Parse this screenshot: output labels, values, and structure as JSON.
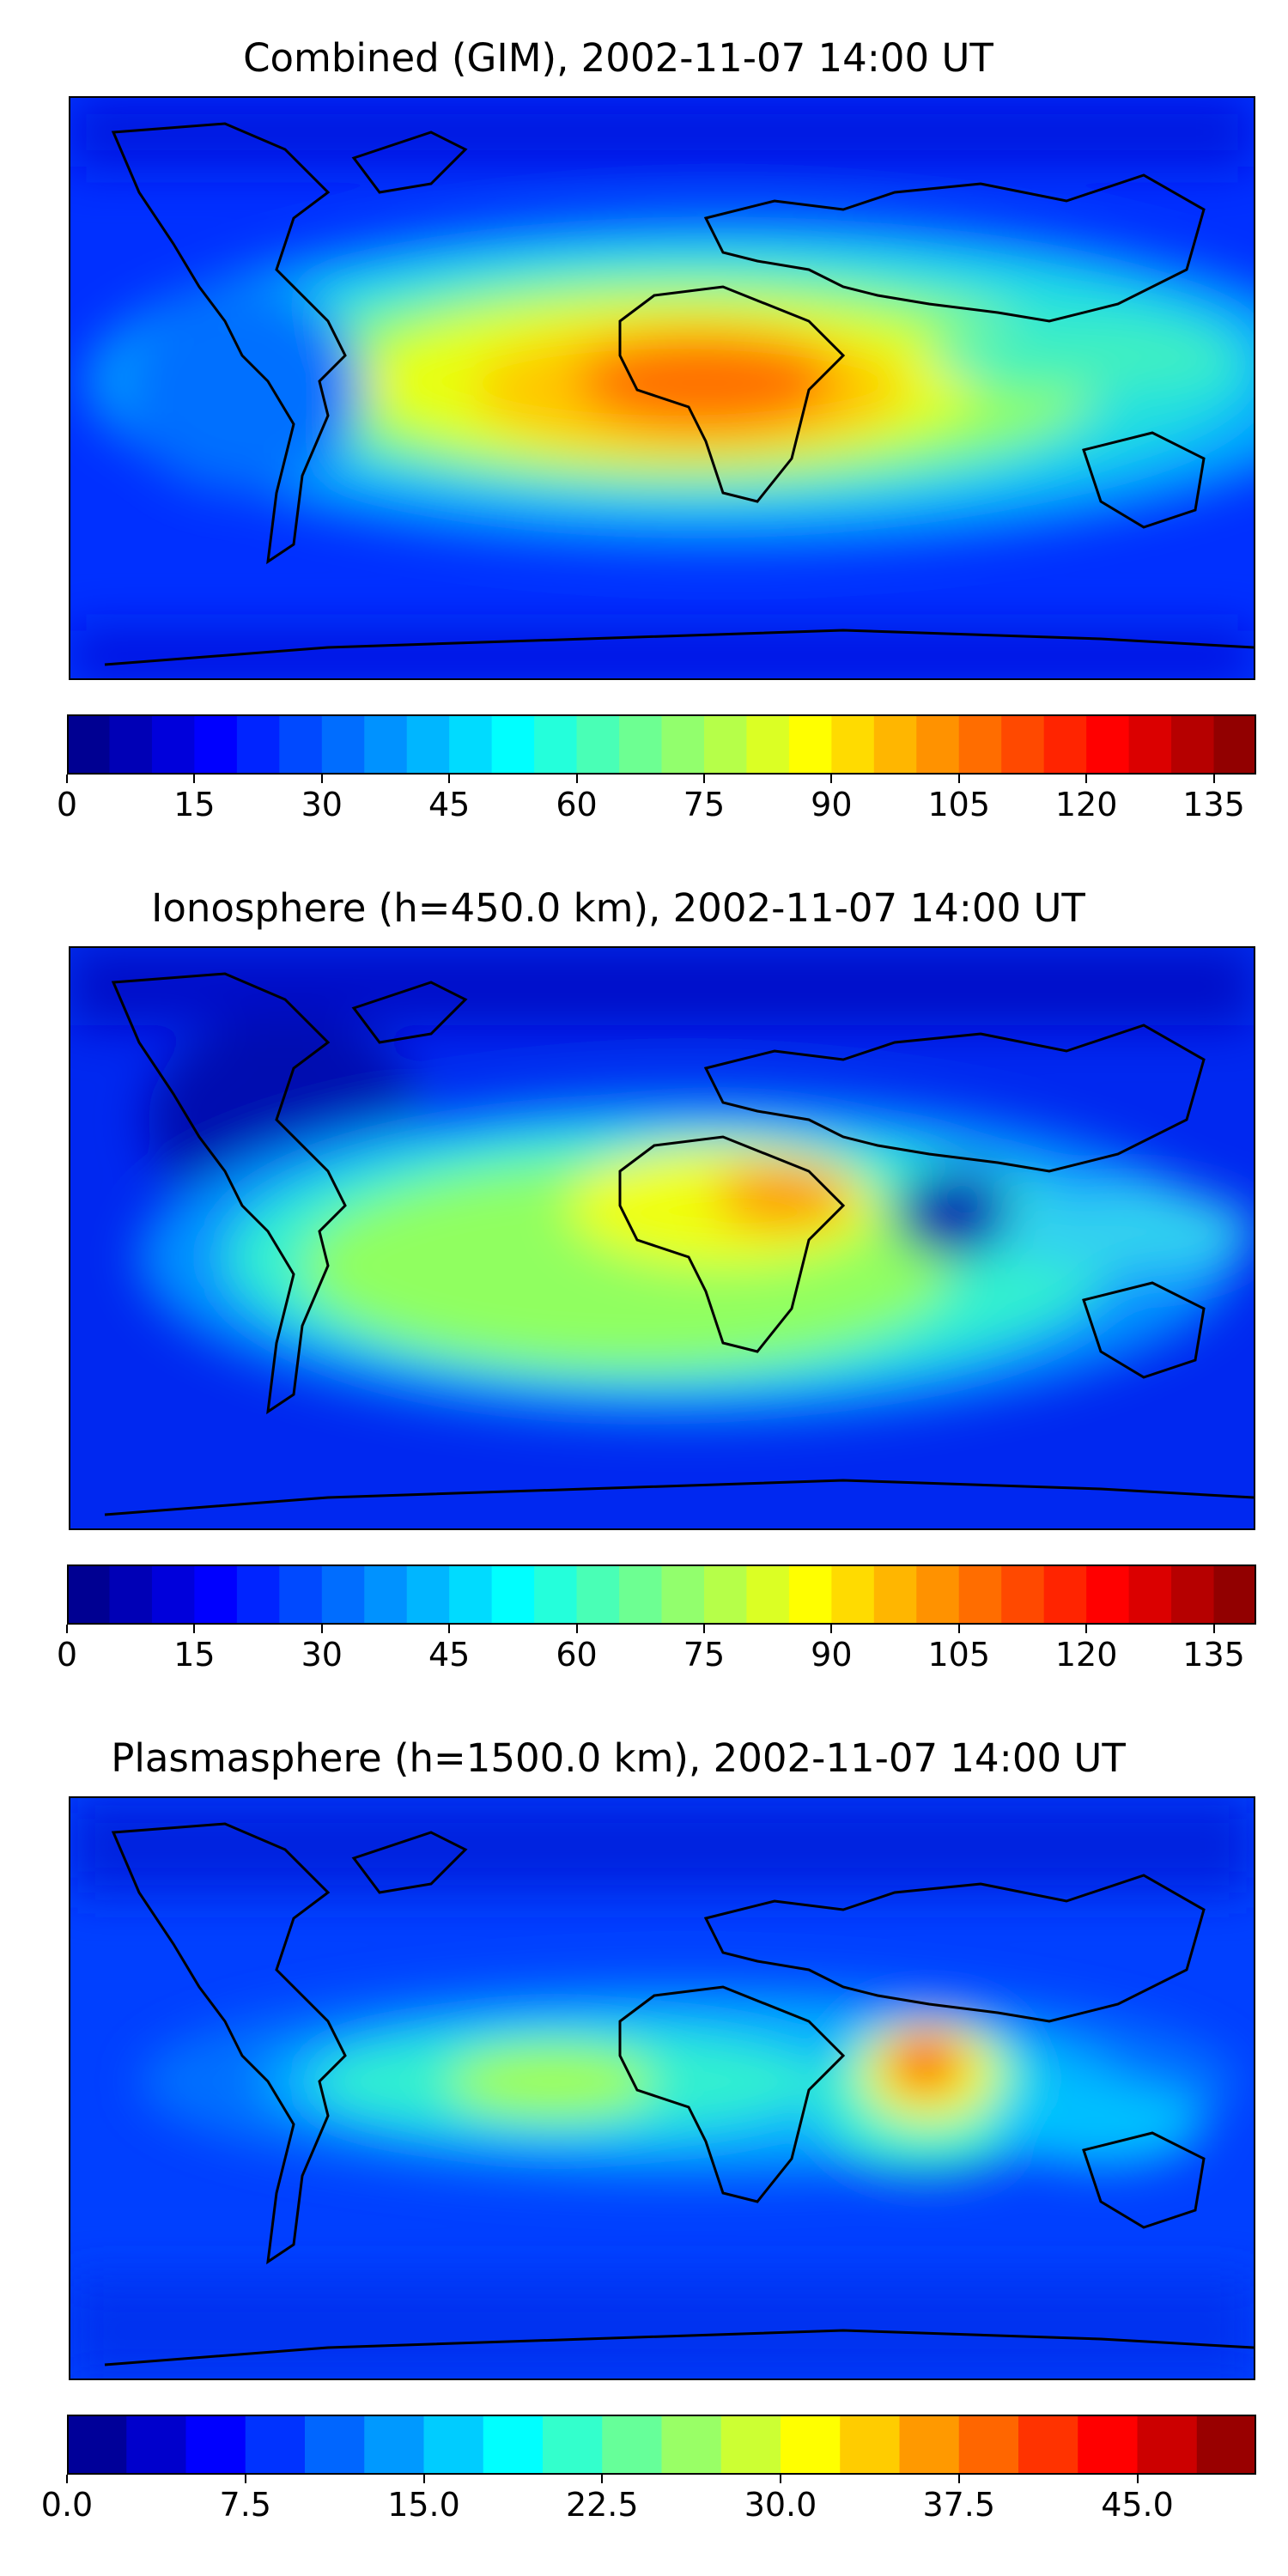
{
  "panels": [
    {
      "title": "Combined (GIM), 2002-11-07 14:00 UT",
      "colorbar": {
        "min": 0,
        "max": 140,
        "levels": 28,
        "ticks": [
          "0",
          "15",
          "30",
          "45",
          "60",
          "75",
          "90",
          "105",
          "120",
          "135"
        ],
        "tick_values": [
          0,
          15,
          30,
          45,
          60,
          75,
          90,
          105,
          120,
          135
        ]
      }
    },
    {
      "title": "Ionosphere  (h=450.0 km), 2002-11-07 14:00 UT",
      "colorbar": {
        "min": 0,
        "max": 140,
        "levels": 28,
        "ticks": [
          "0",
          "15",
          "30",
          "45",
          "60",
          "75",
          "90",
          "105",
          "120",
          "135"
        ],
        "tick_values": [
          0,
          15,
          30,
          45,
          60,
          75,
          90,
          105,
          120,
          135
        ]
      }
    },
    {
      "title": "Plasmasphere (h=1500.0 km), 2002-11-07 14:00 UT",
      "colorbar": {
        "min": 0,
        "max": 50,
        "levels": 20,
        "ticks": [
          "0.0",
          "7.5",
          "15.0",
          "22.5",
          "30.0",
          "37.5",
          "45.0"
        ],
        "tick_values": [
          0,
          7.5,
          15,
          22.5,
          30,
          37.5,
          45
        ]
      }
    }
  ],
  "colormap": "jet",
  "colors": {
    "coastline": "#000000",
    "low": "#00007f",
    "mid": "#7fff7f",
    "high": "#7f0000"
  }
}
